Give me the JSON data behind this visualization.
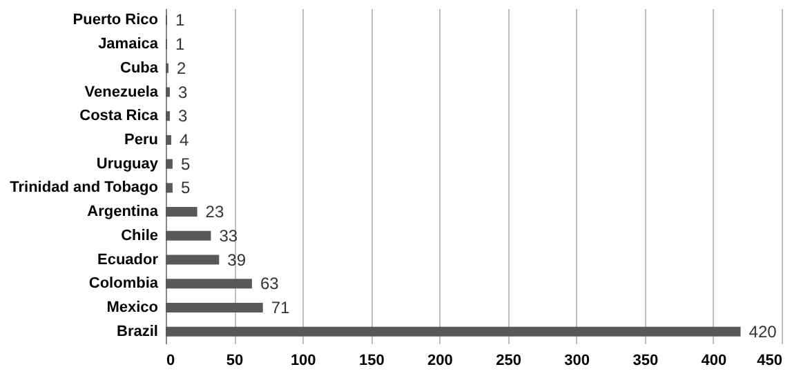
{
  "chart_data": {
    "type": "bar",
    "orientation": "horizontal",
    "categories": [
      "Puerto Rico",
      "Jamaica",
      "Cuba",
      "Venezuela",
      "Costa Rica",
      "Peru",
      "Uruguay",
      "Trinidad and Tobago",
      "Argentina",
      "Chile",
      "Ecuador",
      "Colombia",
      "Mexico",
      "Brazil"
    ],
    "values": [
      1,
      1,
      2,
      3,
      3,
      4,
      5,
      5,
      23,
      33,
      39,
      63,
      71,
      420
    ],
    "color": "#595959",
    "xlim": [
      0,
      450
    ],
    "xticks": [
      0,
      50,
      100,
      150,
      200,
      250,
      300,
      350,
      400,
      450
    ],
    "grid": "x",
    "data_labels": true
  }
}
